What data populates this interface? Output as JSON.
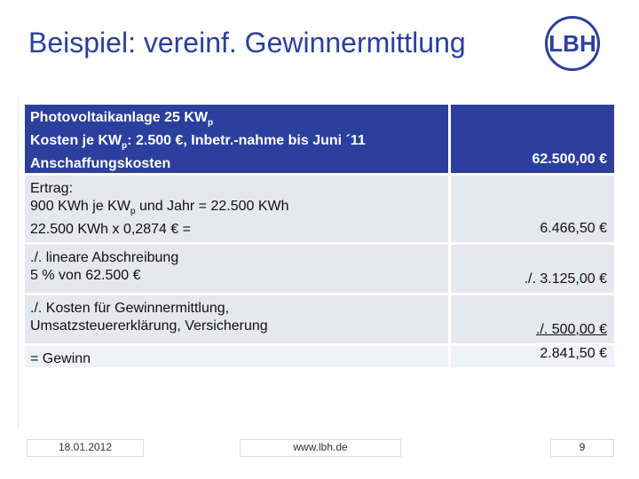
{
  "header": {
    "title": "Beispiel: vereinf. Gewinnermittlung",
    "logo": "LBH"
  },
  "table": {
    "rows": [
      {
        "lines": [
          [
            {
              "t": "Photovoltaikanlage 25 KW"
            },
            {
              "t": "p",
              "sub": true
            }
          ],
          [
            {
              "t": "Kosten je KW"
            },
            {
              "t": "p",
              "sub": true
            },
            {
              "t": ": 2.500 €, Inbetr.-nahme bis Juni ´11"
            }
          ],
          [
            {
              "t": "Anschaffungskosten"
            }
          ]
        ],
        "amount": "62.500,00 €",
        "bg": "#2b3f9c",
        "color": "#ffffff",
        "bold": true
      },
      {
        "lines": [
          [
            {
              "t": "Ertrag:"
            }
          ],
          [
            {
              "t": "900 KWh je KW"
            },
            {
              "t": "p",
              "sub": true
            },
            {
              "t": "  und Jahr =  22.500 KWh"
            }
          ],
          [
            {
              "t": "22.500 KWh x 0,2874 € ="
            }
          ]
        ],
        "amount": "6.466,50 €",
        "bg": "#e6e7ef",
        "color": "#111111",
        "bold": false
      },
      {
        "lines": [
          [
            {
              "t": "./. lineare Abschreibung"
            }
          ],
          [
            {
              "t": "5 % von 62.500 €"
            }
          ]
        ],
        "amount": "./. 3.125,00 €",
        "bg": "#e6e7ef",
        "color": "#111111",
        "bold": false
      },
      {
        "lines": [
          [
            {
              "t": "./. Kosten für Gewinnermittlung,"
            }
          ],
          [
            {
              "t": "Umsatzsteuererklärung, Versicherung"
            }
          ]
        ],
        "amount": "./. 500,00 €",
        "underline": true,
        "bg": "#e6e7ef",
        "color": "#111111",
        "bold": false
      },
      {
        "lines": [
          [
            {
              "t": "= Gewinn"
            }
          ]
        ],
        "amount": "2.841,50 €",
        "bg": "#f1f2f6",
        "color": "#111111",
        "bold": false
      }
    ]
  },
  "footer": {
    "date": "18.01.2012",
    "url": "www.lbh.de",
    "page": "9"
  }
}
